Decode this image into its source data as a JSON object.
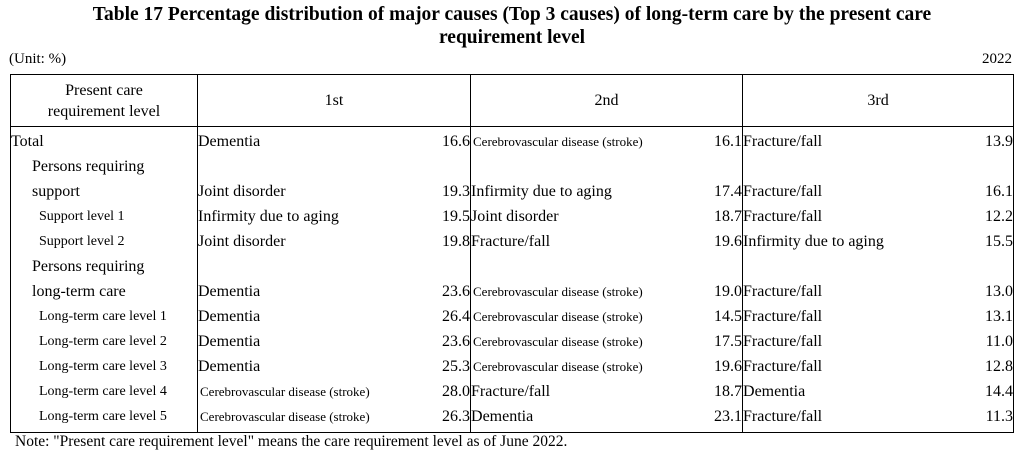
{
  "title_line1": "Table 17 Percentage distribution of major causes (Top 3 causes) of long-term care by the present care",
  "title_line2": "requirement level",
  "unit": "(Unit: %)",
  "year": "2022",
  "headers": {
    "level_line1": "Present care",
    "level_line2": "requirement level",
    "first": "1st",
    "second": "2nd",
    "third": "3rd"
  },
  "rows": [
    {
      "level": "Total",
      "c1": "Dementia",
      "v1": "16.6",
      "c2": "Cerebrovascular disease (stroke)",
      "v2": "16.1",
      "c3": "Fracture/fall",
      "v3": "13.9"
    },
    {
      "level": "Persons requiring",
      "c1": "",
      "v1": "",
      "c2": "",
      "v2": "",
      "c3": "",
      "v3": ""
    },
    {
      "level": "support",
      "c1": "Joint disorder",
      "v1": "19.3",
      "c2": "Infirmity due to aging",
      "v2": "17.4",
      "c3": "Fracture/fall",
      "v3": "16.1"
    },
    {
      "level": "Support level 1",
      "c1": "Infirmity due to aging",
      "v1": "19.5",
      "c2": "Joint disorder",
      "v2": "18.7",
      "c3": "Fracture/fall",
      "v3": "12.2"
    },
    {
      "level": "Support level 2",
      "c1": "Joint disorder",
      "v1": "19.8",
      "c2": "Fracture/fall",
      "v2": "19.6",
      "c3": "Infirmity due to aging",
      "v3": "15.5"
    },
    {
      "level": "Persons requiring",
      "c1": "",
      "v1": "",
      "c2": "",
      "v2": "",
      "c3": "",
      "v3": ""
    },
    {
      "level": "long-term care",
      "c1": "Dementia",
      "v1": "23.6",
      "c2": "Cerebrovascular disease (stroke)",
      "v2": "19.0",
      "c3": "Fracture/fall",
      "v3": "13.0"
    },
    {
      "level": "Long-term care level 1",
      "c1": "Dementia",
      "v1": "26.4",
      "c2": "Cerebrovascular disease (stroke)",
      "v2": "14.5",
      "c3": "Fracture/fall",
      "v3": "13.1"
    },
    {
      "level": "Long-term care level 2",
      "c1": "Dementia",
      "v1": "23.6",
      "c2": "Cerebrovascular disease (stroke)",
      "v2": "17.5",
      "c3": "Fracture/fall",
      "v3": "11.0"
    },
    {
      "level": "Long-term care level 3",
      "c1": "Dementia",
      "v1": "25.3",
      "c2": "Cerebrovascular disease (stroke)",
      "v2": "19.6",
      "c3": "Fracture/fall",
      "v3": "12.8"
    },
    {
      "level": "Long-term care level 4",
      "c1": "Cerebrovascular disease (stroke)",
      "v1": "28.0",
      "c2": "Fracture/fall",
      "v2": "18.7",
      "c3": "Dementia",
      "v3": "14.4"
    },
    {
      "level": "Long-term care level 5",
      "c1": "Cerebrovascular disease (stroke)",
      "v1": "26.3",
      "c2": "Dementia",
      "v2": "23.1",
      "c3": "Fracture/fall",
      "v3": "11.3"
    }
  ],
  "note": "Note: \"Present care requirement level\" means the care requirement level as of June 2022."
}
